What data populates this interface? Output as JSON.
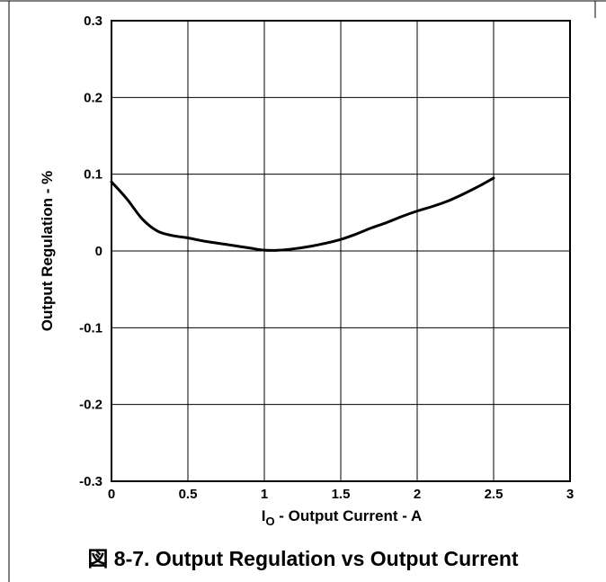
{
  "figure": {
    "caption": "図 8-7. Output Regulation vs Output Current"
  },
  "chart_data": {
    "type": "line",
    "xlabel_main": "I",
    "xlabel_sub": "O",
    "xlabel_rest": " - Output Current - A",
    "ylabel": "Output Regulation - %",
    "xlim": [
      0,
      3
    ],
    "ylim": [
      -0.3,
      0.3
    ],
    "xticks": [
      0,
      0.5,
      1,
      1.5,
      2,
      2.5,
      3
    ],
    "xtick_labels": [
      "0",
      "0.5",
      "1",
      "1.5",
      "2",
      "2.5",
      "3"
    ],
    "yticks": [
      0.3,
      0.2,
      0.1,
      0,
      -0.1,
      -0.2,
      -0.3
    ],
    "ytick_labels": [
      "0.3",
      "0.2",
      "0.1",
      "0",
      "-0.1",
      "-0.2",
      "-0.3"
    ],
    "grid": true,
    "series": [
      {
        "color": "#000000",
        "x": [
          0,
          0.1,
          0.2,
          0.3,
          0.4,
          0.5,
          0.6,
          0.7,
          0.8,
          0.9,
          1.0,
          1.1,
          1.2,
          1.3,
          1.4,
          1.5,
          1.6,
          1.7,
          1.8,
          1.9,
          2.0,
          2.1,
          2.2,
          2.3,
          2.4,
          2.5
        ],
        "y": [
          0.09,
          0.068,
          0.042,
          0.026,
          0.02,
          0.017,
          0.013,
          0.01,
          0.007,
          0.004,
          0.001,
          0.001,
          0.003,
          0.006,
          0.01,
          0.015,
          0.022,
          0.03,
          0.037,
          0.045,
          0.052,
          0.058,
          0.065,
          0.074,
          0.084,
          0.095
        ]
      }
    ]
  }
}
